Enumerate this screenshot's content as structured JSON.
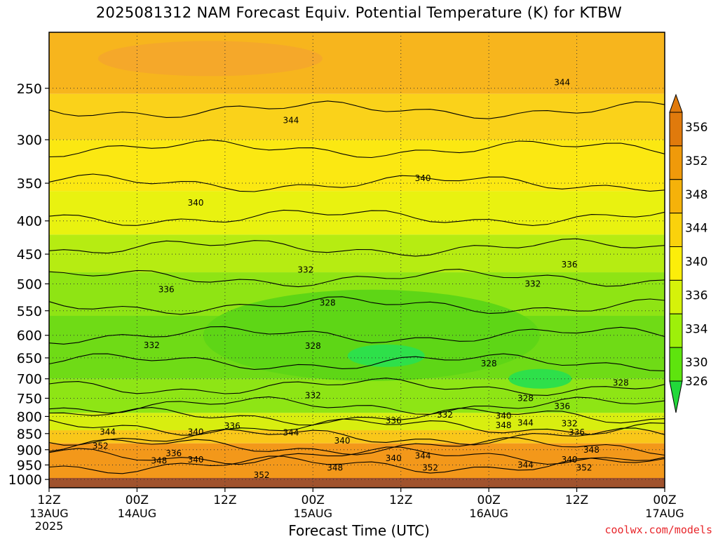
{
  "title": "2025081312 NAM Forecast Equiv. Potential Temperature (K) for KTBW",
  "credit": "coolwx.com/models",
  "chart_data": {
    "type": "heatmap",
    "title": "2025081312 NAM Forecast Equiv. Potential Temperature (K) for KTBW",
    "xlabel": "Forecast Time (UTC)",
    "ylabel": "",
    "y_axis": {
      "scale": "log",
      "reversed": true,
      "ylim": [
        1030,
        205
      ],
      "ticks": [
        250,
        300,
        350,
        400,
        450,
        500,
        550,
        600,
        650,
        700,
        750,
        800,
        850,
        900,
        950,
        1000
      ]
    },
    "x_axis": {
      "xlim": [
        0,
        84
      ],
      "ticks": [
        {
          "x": 0,
          "label": "12Z",
          "sub": "13AUG",
          "sub2": "2025"
        },
        {
          "x": 12,
          "label": "00Z",
          "sub": "14AUG",
          "sub2": ""
        },
        {
          "x": 24,
          "label": "12Z",
          "sub": "",
          "sub2": ""
        },
        {
          "x": 36,
          "label": "00Z",
          "sub": "15AUG",
          "sub2": ""
        },
        {
          "x": 48,
          "label": "12Z",
          "sub": "",
          "sub2": ""
        },
        {
          "x": 60,
          "label": "00Z",
          "sub": "16AUG",
          "sub2": ""
        },
        {
          "x": 72,
          "label": "12Z",
          "sub": "",
          "sub2": ""
        },
        {
          "x": 84,
          "label": "00Z",
          "sub": "17AUG",
          "sub2": ""
        }
      ]
    },
    "grid": "dotted",
    "colorbar": {
      "labels": [
        356,
        352,
        348,
        344,
        340,
        336,
        334,
        330,
        326
      ],
      "colors": [
        "#e07a0c",
        "#f09a0a",
        "#f5b20a",
        "#fad20c",
        "#fcee0a",
        "#d6f20a",
        "#9ef00a",
        "#5ee40e",
        "#22d83a"
      ]
    },
    "contour_labels": [
      {
        "x": 33,
        "p": 280,
        "v": 344
      },
      {
        "x": 70,
        "p": 245,
        "v": 344
      },
      {
        "x": 20,
        "p": 375,
        "v": 340
      },
      {
        "x": 51,
        "p": 344,
        "v": 340
      },
      {
        "x": 35,
        "p": 476,
        "v": 332
      },
      {
        "x": 16,
        "p": 510,
        "v": 336
      },
      {
        "x": 38,
        "p": 535,
        "v": 328
      },
      {
        "x": 66,
        "p": 500,
        "v": 332
      },
      {
        "x": 71,
        "p": 467,
        "v": 336
      },
      {
        "x": 14,
        "p": 622,
        "v": 332
      },
      {
        "x": 36,
        "p": 623,
        "v": 328
      },
      {
        "x": 60,
        "p": 663,
        "v": 328
      },
      {
        "x": 65,
        "p": 750,
        "v": 328
      },
      {
        "x": 78,
        "p": 710,
        "v": 328
      },
      {
        "x": 36,
        "p": 743,
        "v": 332
      },
      {
        "x": 70,
        "p": 772,
        "v": 336
      },
      {
        "x": 54,
        "p": 795,
        "v": 332
      },
      {
        "x": 47,
        "p": 812,
        "v": 336
      },
      {
        "x": 62,
        "p": 798,
        "v": 340
      },
      {
        "x": 62,
        "p": 825,
        "v": 348
      },
      {
        "x": 65,
        "p": 818,
        "v": 344
      },
      {
        "x": 71,
        "p": 820,
        "v": 332
      },
      {
        "x": 72,
        "p": 846,
        "v": 336
      },
      {
        "x": 25,
        "p": 828,
        "v": 336
      },
      {
        "x": 8,
        "p": 845,
        "v": 344
      },
      {
        "x": 20,
        "p": 845,
        "v": 340
      },
      {
        "x": 33,
        "p": 847,
        "v": 344
      },
      {
        "x": 40,
        "p": 872,
        "v": 340
      },
      {
        "x": 7,
        "p": 888,
        "v": 352
      },
      {
        "x": 17,
        "p": 912,
        "v": 336
      },
      {
        "x": 15,
        "p": 936,
        "v": 348
      },
      {
        "x": 20,
        "p": 932,
        "v": 340
      },
      {
        "x": 47,
        "p": 928,
        "v": 340
      },
      {
        "x": 51,
        "p": 920,
        "v": 344
      },
      {
        "x": 52,
        "p": 960,
        "v": 352
      },
      {
        "x": 39,
        "p": 960,
        "v": 348
      },
      {
        "x": 29,
        "p": 985,
        "v": 352
      },
      {
        "x": 74,
        "p": 900,
        "v": 348
      },
      {
        "x": 71,
        "p": 933,
        "v": 340
      },
      {
        "x": 65,
        "p": 950,
        "v": 344
      },
      {
        "x": 73,
        "p": 960,
        "v": 352
      }
    ]
  }
}
